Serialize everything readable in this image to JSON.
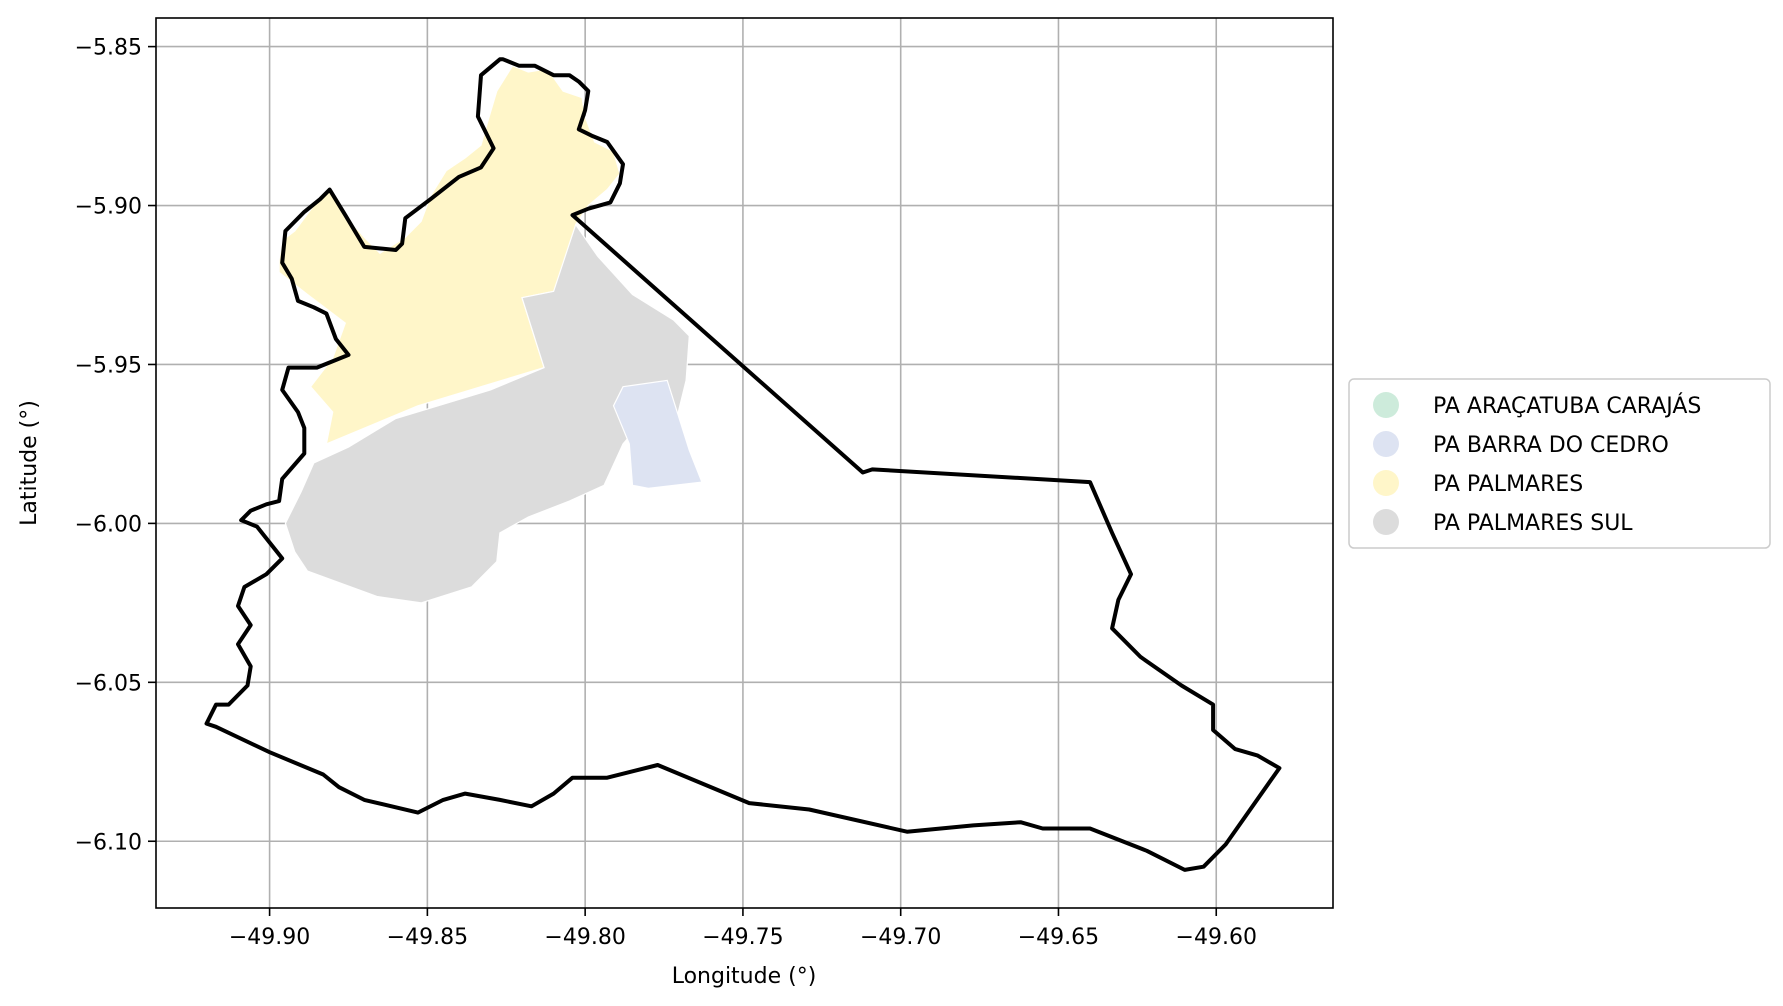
{
  "chart_data": {
    "type": "map",
    "xlabel": "Longitude (°)",
    "ylabel": "Latitude (°)",
    "xlim": [
      -49.936,
      -49.563
    ],
    "ylim": [
      -6.121,
      -5.841
    ],
    "xticks": [
      -49.9,
      -49.85,
      -49.8,
      -49.75,
      -49.7,
      -49.65,
      -49.6
    ],
    "xtick_labels": [
      "−49.90",
      "−49.85",
      "−49.80",
      "−49.75",
      "−49.70",
      "−49.65",
      "−49.60"
    ],
    "yticks": [
      -5.85,
      -5.9,
      -5.95,
      -6.0,
      -6.05,
      -6.1
    ],
    "ytick_labels": [
      "−5.85",
      "−5.90",
      "−5.95",
      "−6.00",
      "−6.05",
      "−6.10"
    ],
    "grid": true,
    "legend_position": "right",
    "legend": [
      {
        "label": "PA ARAÇATUBA CARAJÁS",
        "color": "#cdebdb"
      },
      {
        "label": "PA BARRA DO CEDRO",
        "color": "#dde3f2"
      },
      {
        "label": "PA PALMARES",
        "color": "#fff6c9"
      },
      {
        "label": "PA PALMARES SUL",
        "color": "#dcdcdc"
      }
    ],
    "regions": [
      {
        "name": "PA PALMARES",
        "color": "#fff6c9",
        "coords": [
          [
            -49.897,
            -5.917
          ],
          [
            -49.896,
            -5.911
          ],
          [
            -49.892,
            -5.908
          ],
          [
            -49.886,
            -5.9
          ],
          [
            -49.881,
            -5.895
          ],
          [
            -49.876,
            -5.903
          ],
          [
            -49.87,
            -5.91
          ],
          [
            -49.865,
            -5.915
          ],
          [
            -49.857,
            -5.91
          ],
          [
            -49.852,
            -5.905
          ],
          [
            -49.849,
            -5.897
          ],
          [
            -49.844,
            -5.889
          ],
          [
            -49.838,
            -5.885
          ],
          [
            -49.833,
            -5.881
          ],
          [
            -49.831,
            -5.874
          ],
          [
            -49.828,
            -5.864
          ],
          [
            -49.823,
            -5.856
          ],
          [
            -49.818,
            -5.858
          ],
          [
            -49.812,
            -5.857
          ],
          [
            -49.807,
            -5.864
          ],
          [
            -49.801,
            -5.866
          ],
          [
            -49.8,
            -5.872
          ],
          [
            -49.797,
            -5.88
          ],
          [
            -49.791,
            -5.883
          ],
          [
            -49.789,
            -5.89
          ],
          [
            -49.793,
            -5.895
          ],
          [
            -49.799,
            -5.9
          ],
          [
            -49.803,
            -5.906
          ],
          [
            -49.803,
            -5.929
          ],
          [
            -49.81,
            -5.927
          ],
          [
            -49.82,
            -5.929
          ],
          [
            -49.813,
            -5.951
          ],
          [
            -49.853,
            -5.963
          ],
          [
            -49.882,
            -5.975
          ],
          [
            -49.88,
            -5.965
          ],
          [
            -49.887,
            -5.957
          ],
          [
            -49.88,
            -5.948
          ],
          [
            -49.876,
            -5.937
          ],
          [
            -49.888,
            -5.928
          ],
          [
            -49.897,
            -5.921
          ]
        ]
      },
      {
        "name": "PA PALMARES SUL",
        "color": "#dcdcdc",
        "coords": [
          [
            -49.803,
            -5.906
          ],
          [
            -49.796,
            -5.916
          ],
          [
            -49.785,
            -5.928
          ],
          [
            -49.772,
            -5.936
          ],
          [
            -49.767,
            -5.941
          ],
          [
            -49.768,
            -5.955
          ],
          [
            -49.771,
            -5.967
          ],
          [
            -49.782,
            -5.968
          ],
          [
            -49.788,
            -5.975
          ],
          [
            -49.794,
            -5.988
          ],
          [
            -49.805,
            -5.993
          ],
          [
            -49.818,
            -5.998
          ],
          [
            -49.827,
            -6.003
          ],
          [
            -49.828,
            -6.012
          ],
          [
            -49.836,
            -6.02
          ],
          [
            -49.852,
            -6.025
          ],
          [
            -49.866,
            -6.023
          ],
          [
            -49.888,
            -6.015
          ],
          [
            -49.892,
            -6.009
          ],
          [
            -49.895,
            -6.0
          ],
          [
            -49.89,
            -5.99
          ],
          [
            -49.886,
            -5.981
          ],
          [
            -49.875,
            -5.976
          ],
          [
            -49.86,
            -5.967
          ],
          [
            -49.83,
            -5.958
          ],
          [
            -49.813,
            -5.951
          ],
          [
            -49.82,
            -5.929
          ],
          [
            -49.81,
            -5.927
          ]
        ]
      },
      {
        "name": "PA BARRA DO CEDRO",
        "color": "#dde3f2",
        "coords": [
          [
            -49.788,
            -5.957
          ],
          [
            -49.774,
            -5.955
          ],
          [
            -49.767,
            -5.977
          ],
          [
            -49.763,
            -5.987
          ],
          [
            -49.78,
            -5.989
          ],
          [
            -49.785,
            -5.988
          ],
          [
            -49.786,
            -5.975
          ],
          [
            -49.791,
            -5.963
          ]
        ]
      }
    ],
    "boundary": [
      [
        -49.827,
        -5.854
      ],
      [
        -49.833,
        -5.859
      ],
      [
        -49.834,
        -5.872
      ],
      [
        -49.829,
        -5.882
      ],
      [
        -49.833,
        -5.888
      ],
      [
        -49.84,
        -5.891
      ],
      [
        -49.849,
        -5.898
      ],
      [
        -49.857,
        -5.904
      ],
      [
        -49.858,
        -5.912
      ],
      [
        -49.86,
        -5.914
      ],
      [
        -49.87,
        -5.913
      ],
      [
        -49.876,
        -5.903
      ],
      [
        -49.881,
        -5.895
      ],
      [
        -49.884,
        -5.898
      ],
      [
        -49.889,
        -5.902
      ],
      [
        -49.895,
        -5.908
      ],
      [
        -49.896,
        -5.918
      ],
      [
        -49.893,
        -5.923
      ],
      [
        -49.891,
        -5.93
      ],
      [
        -49.886,
        -5.932
      ],
      [
        -49.882,
        -5.934
      ],
      [
        -49.879,
        -5.942
      ],
      [
        -49.875,
        -5.947
      ],
      [
        -49.885,
        -5.951
      ],
      [
        -49.894,
        -5.951
      ],
      [
        -49.896,
        -5.958
      ],
      [
        -49.891,
        -5.965
      ],
      [
        -49.889,
        -5.97
      ],
      [
        -49.889,
        -5.978
      ],
      [
        -49.896,
        -5.986
      ],
      [
        -49.897,
        -5.993
      ],
      [
        -49.901,
        -5.994
      ],
      [
        -49.906,
        -5.996
      ],
      [
        -49.909,
        -5.999
      ],
      [
        -49.904,
        -6.001
      ],
      [
        -49.9,
        -6.006
      ],
      [
        -49.896,
        -6.011
      ],
      [
        -49.901,
        -6.016
      ],
      [
        -49.908,
        -6.02
      ],
      [
        -49.91,
        -6.026
      ],
      [
        -49.906,
        -6.032
      ],
      [
        -49.91,
        -6.038
      ],
      [
        -49.906,
        -6.045
      ],
      [
        -49.907,
        -6.051
      ],
      [
        -49.913,
        -6.057
      ],
      [
        -49.917,
        -6.057
      ],
      [
        -49.92,
        -6.063
      ],
      [
        -49.917,
        -6.064
      ],
      [
        -49.9,
        -6.072
      ],
      [
        -49.883,
        -6.079
      ],
      [
        -49.878,
        -6.083
      ],
      [
        -49.87,
        -6.087
      ],
      [
        -49.853,
        -6.091
      ],
      [
        -49.845,
        -6.087
      ],
      [
        -49.838,
        -6.085
      ],
      [
        -49.827,
        -6.087
      ],
      [
        -49.817,
        -6.089
      ],
      [
        -49.81,
        -6.085
      ],
      [
        -49.804,
        -6.08
      ],
      [
        -49.793,
        -6.08
      ],
      [
        -49.777,
        -6.076
      ],
      [
        -49.748,
        -6.088
      ],
      [
        -49.729,
        -6.09
      ],
      [
        -49.698,
        -6.097
      ],
      [
        -49.677,
        -6.095
      ],
      [
        -49.662,
        -6.094
      ],
      [
        -49.655,
        -6.096
      ],
      [
        -49.64,
        -6.096
      ],
      [
        -49.622,
        -6.103
      ],
      [
        -49.61,
        -6.109
      ],
      [
        -49.604,
        -6.108
      ],
      [
        -49.597,
        -6.101
      ],
      [
        -49.58,
        -6.077
      ],
      [
        -49.587,
        -6.073
      ],
      [
        -49.594,
        -6.071
      ],
      [
        -49.601,
        -6.065
      ],
      [
        -49.601,
        -6.057
      ],
      [
        -49.611,
        -6.051
      ],
      [
        -49.624,
        -6.042
      ],
      [
        -49.633,
        -6.033
      ],
      [
        -49.631,
        -6.024
      ],
      [
        -49.627,
        -6.016
      ],
      [
        -49.633,
        -6.003
      ],
      [
        -49.64,
        -5.987
      ],
      [
        -49.709,
        -5.983
      ],
      [
        -49.712,
        -5.984
      ],
      [
        -49.804,
        -5.903
      ],
      [
        -49.799,
        -5.901
      ],
      [
        -49.792,
        -5.899
      ],
      [
        -49.789,
        -5.893
      ],
      [
        -49.788,
        -5.887
      ],
      [
        -49.793,
        -5.88
      ],
      [
        -49.798,
        -5.878
      ],
      [
        -49.802,
        -5.876
      ],
      [
        -49.8,
        -5.87
      ],
      [
        -49.799,
        -5.864
      ],
      [
        -49.802,
        -5.861
      ],
      [
        -49.805,
        -5.859
      ],
      [
        -49.81,
        -5.859
      ],
      [
        -49.816,
        -5.856
      ],
      [
        -49.821,
        -5.856
      ],
      [
        -49.826,
        -5.854
      ]
    ]
  }
}
